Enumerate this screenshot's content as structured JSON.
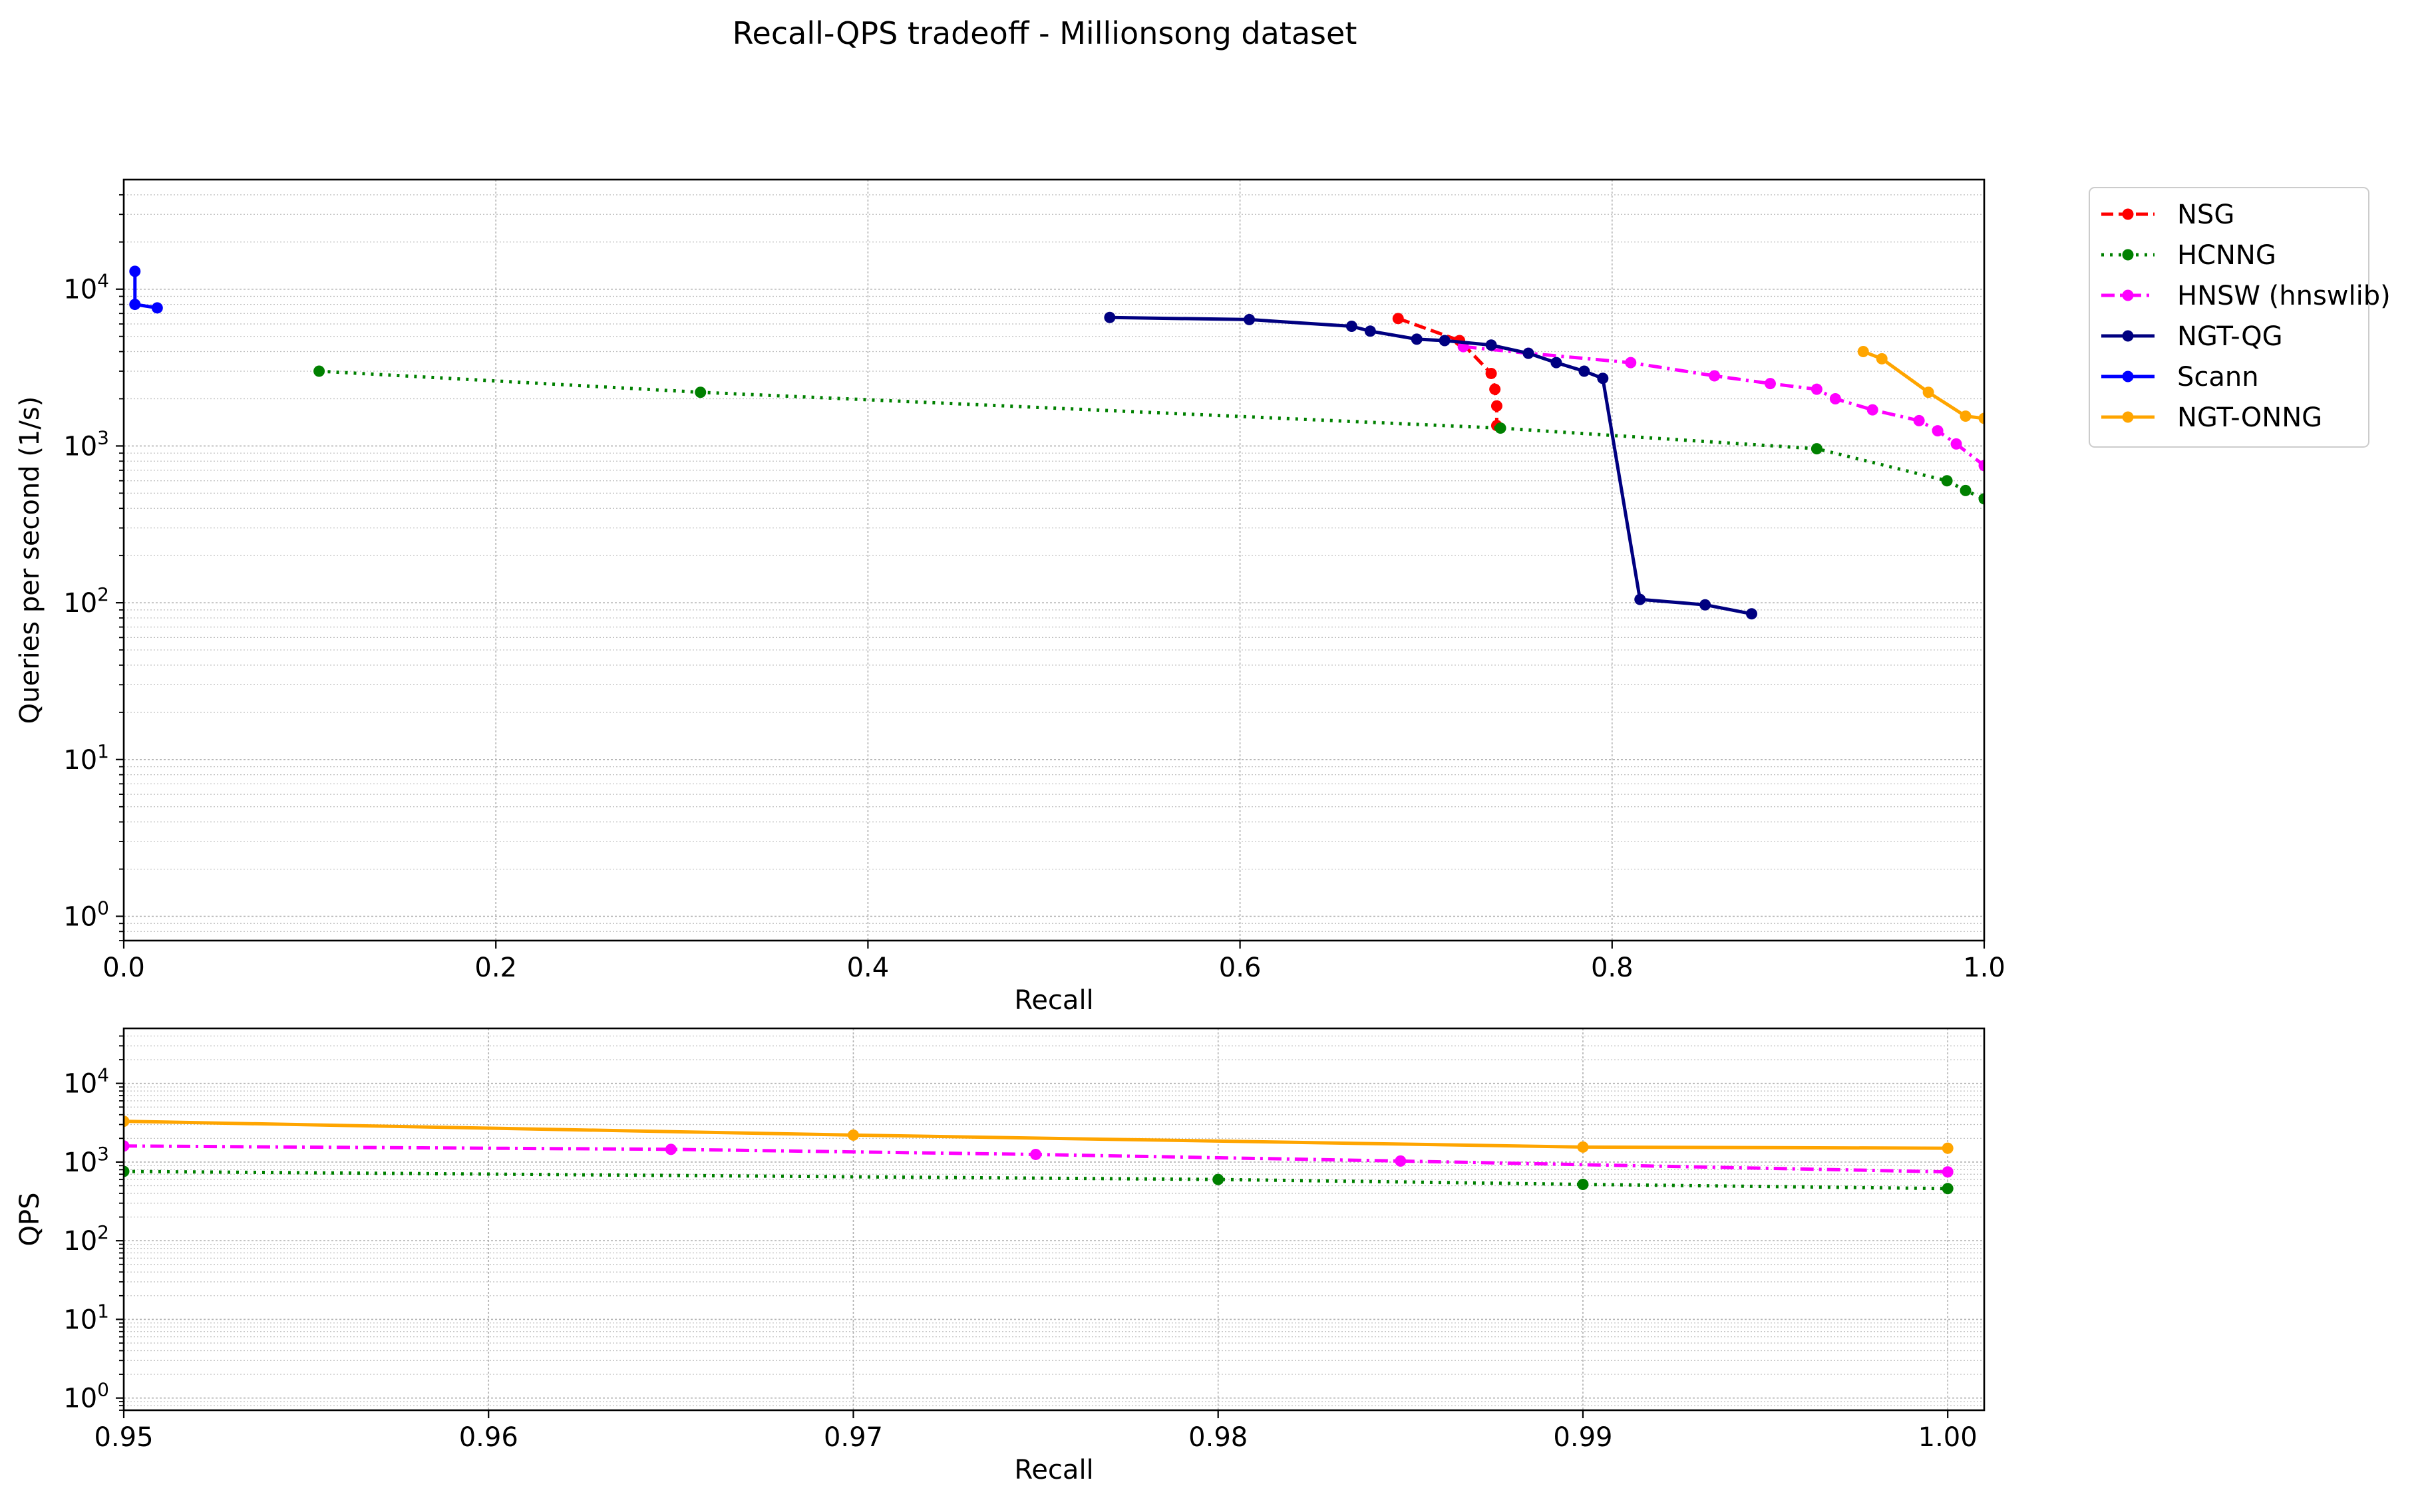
{
  "title": "Recall-QPS tradeoff - Millionsong dataset",
  "chart_data": [
    {
      "type": "line",
      "xlabel": "Recall",
      "ylabel": "Queries per second (1/s)",
      "xlim": [
        0.0,
        1.0
      ],
      "ylim": [
        0.7,
        50000
      ],
      "yscale": "log",
      "grid": true,
      "legend": "outside-right",
      "xticks": [
        0.0,
        0.2,
        0.4,
        0.6,
        0.8,
        1.0
      ],
      "xtick_labels": [
        "0.0",
        "0.2",
        "0.4",
        "0.6",
        "0.8",
        "1.0"
      ],
      "yticks": [
        1,
        10,
        100,
        1000,
        10000
      ],
      "ytick_labels": [
        {
          "base": "10",
          "exp": "0"
        },
        {
          "base": "10",
          "exp": "1"
        },
        {
          "base": "10",
          "exp": "2"
        },
        {
          "base": "10",
          "exp": "3"
        },
        {
          "base": "10",
          "exp": "4"
        }
      ],
      "series": [
        {
          "name": "NSG",
          "color": "#ff0000",
          "dash": "dashed",
          "x": [
            0.685,
            0.718,
            0.735,
            0.737,
            0.738,
            0.738
          ],
          "y": [
            6500,
            4700,
            2900,
            2300,
            1800,
            1350
          ]
        },
        {
          "name": "HCNNG",
          "color": "#008000",
          "dash": "dotted",
          "x": [
            0.105,
            0.31,
            0.74,
            0.91,
            0.98,
            0.99,
            1.0
          ],
          "y": [
            3000,
            2200,
            1300,
            960,
            600,
            520,
            460
          ]
        },
        {
          "name": "HNSW (hnswlib)",
          "color": "#ff00ff",
          "dash": "dashdot",
          "x": [
            0.72,
            0.755,
            0.81,
            0.855,
            0.885,
            0.91,
            0.92,
            0.94,
            0.965,
            0.975,
            0.985,
            1.0
          ],
          "y": [
            4300,
            3900,
            3400,
            2800,
            2500,
            2300,
            2000,
            1700,
            1450,
            1250,
            1030,
            750
          ]
        },
        {
          "name": "NGT-QG",
          "color": "#000080",
          "dash": "solid",
          "x": [
            0.53,
            0.605,
            0.66,
            0.67,
            0.695,
            0.71,
            0.735,
            0.755,
            0.77,
            0.785,
            0.795,
            0.815,
            0.85,
            0.875
          ],
          "y": [
            6600,
            6400,
            5800,
            5400,
            4800,
            4700,
            4400,
            3900,
            3400,
            3000,
            2700,
            105,
            97,
            85
          ]
        },
        {
          "name": "Scann",
          "color": "#0000ff",
          "dash": "solid",
          "x": [
            0.006,
            0.006,
            0.018
          ],
          "y": [
            13000,
            8000,
            7600
          ]
        },
        {
          "name": "NGT-ONNG",
          "color": "#ffa500",
          "dash": "solid",
          "x": [
            0.935,
            0.945,
            0.97,
            0.99,
            1.0
          ],
          "y": [
            4000,
            3600,
            2200,
            1550,
            1500
          ]
        }
      ]
    },
    {
      "type": "line",
      "xlabel": "Recall",
      "ylabel": "QPS",
      "xlim": [
        0.95,
        1.001
      ],
      "ylim": [
        0.7,
        50000
      ],
      "yscale": "log",
      "grid": true,
      "xticks": [
        0.95,
        0.96,
        0.97,
        0.98,
        0.99,
        1.0
      ],
      "xtick_labels": [
        "0.95",
        "0.96",
        "0.97",
        "0.98",
        "0.99",
        "1.00"
      ],
      "yticks": [
        1,
        10,
        100,
        1000,
        10000
      ],
      "ytick_labels": [
        {
          "base": "10",
          "exp": "0"
        },
        {
          "base": "10",
          "exp": "1"
        },
        {
          "base": "10",
          "exp": "2"
        },
        {
          "base": "10",
          "exp": "3"
        },
        {
          "base": "10",
          "exp": "4"
        }
      ],
      "series": [
        {
          "name": "NGT-ONNG",
          "color": "#ffa500",
          "dash": "solid",
          "x": [
            0.95,
            0.97,
            0.99,
            1.0
          ],
          "y": [
            3300,
            2200,
            1550,
            1500
          ]
        },
        {
          "name": "HNSW (hnswlib)",
          "color": "#ff00ff",
          "dash": "dashdot",
          "x": [
            0.95,
            0.965,
            0.975,
            0.985,
            1.0
          ],
          "y": [
            1600,
            1450,
            1250,
            1030,
            750
          ]
        },
        {
          "name": "HCNNG",
          "color": "#008000",
          "dash": "dotted",
          "x": [
            0.95,
            0.98,
            0.99,
            1.0
          ],
          "y": [
            760,
            600,
            520,
            460
          ]
        }
      ]
    }
  ]
}
